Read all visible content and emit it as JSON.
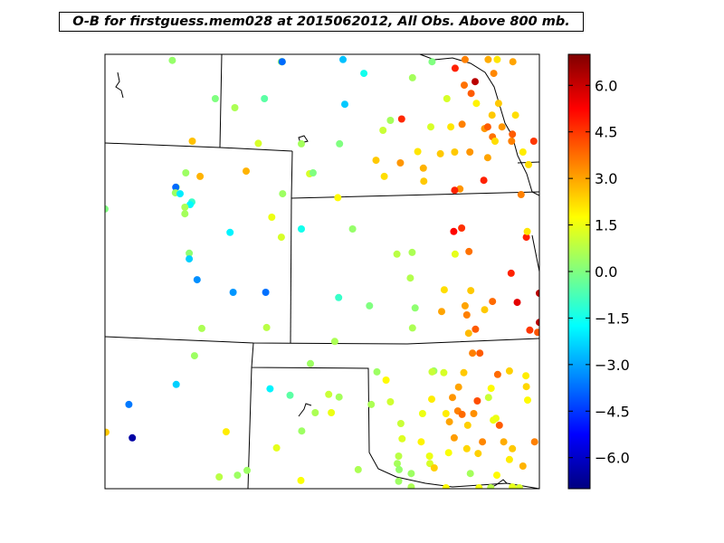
{
  "title": "O-B for firstguess.mem028 at 2015062012, All Obs. Above 800 mb.",
  "colorbar": {
    "vmin": -7,
    "vmax": 7,
    "ticks": [
      6.0,
      4.5,
      3.0,
      1.5,
      0.0,
      -1.5,
      -3.0,
      -4.5,
      -6.0
    ],
    "tick_labels": [
      "6.0",
      "4.5",
      "3.0",
      "1.5",
      "0.0",
      "−1.5",
      "−3.0",
      "−4.5",
      "−6.0"
    ],
    "colormap": "jet"
  },
  "colors": {
    "jet_stops": [
      "#00007f",
      "#0000ff",
      "#0080ff",
      "#00ffff",
      "#80ff80",
      "#ffff00",
      "#ff8000",
      "#ff0000",
      "#7f0000"
    ]
  },
  "chart_data": {
    "type": "scatter",
    "title": "O-B for firstguess.mem028 at 2015062012, All Obs. Above 800 mb.",
    "xlabel": "",
    "ylabel": "",
    "value_range": [
      -7,
      7
    ],
    "note_units": "points are [map_x_fraction, map_y_fraction, O-B value]",
    "points": [
      [
        0.155,
        0.014,
        0.3
      ],
      [
        0.406,
        0.017,
        0.2
      ],
      [
        0.408,
        0.017,
        0.2
      ],
      [
        0.408,
        0.017,
        0.2
      ],
      [
        0.408,
        0.017,
        -3.8
      ],
      [
        0.548,
        0.012,
        -2.6
      ],
      [
        0.829,
        0.012,
        3.5
      ],
      [
        0.882,
        0.012,
        2.9
      ],
      [
        0.903,
        0.012,
        2.1
      ],
      [
        0.939,
        0.017,
        3.0
      ],
      [
        0.753,
        0.017,
        0.0
      ],
      [
        0.806,
        0.032,
        4.8
      ],
      [
        0.596,
        0.044,
        -1.5
      ],
      [
        0.708,
        0.054,
        0.5
      ],
      [
        0.895,
        0.044,
        3.4
      ],
      [
        0.827,
        0.071,
        3.7
      ],
      [
        0.852,
        0.063,
        6.2
      ],
      [
        0.254,
        0.102,
        0.0
      ],
      [
        0.367,
        0.102,
        -0.5
      ],
      [
        0.787,
        0.102,
        1.2
      ],
      [
        0.843,
        0.09,
        4.0
      ],
      [
        0.299,
        0.123,
        0.6
      ],
      [
        0.552,
        0.115,
        -2.5
      ],
      [
        0.855,
        0.113,
        1.9
      ],
      [
        0.906,
        0.113,
        2.5
      ],
      [
        0.683,
        0.149,
        4.7
      ],
      [
        0.657,
        0.152,
        0.5
      ],
      [
        0.822,
        0.161,
        3.5
      ],
      [
        0.891,
        0.14,
        2.5
      ],
      [
        0.945,
        0.14,
        2.2
      ],
      [
        0.75,
        0.167,
        1.2
      ],
      [
        0.796,
        0.167,
        2.1
      ],
      [
        0.64,
        0.175,
        1.0
      ],
      [
        0.874,
        0.171,
        3.2
      ],
      [
        0.881,
        0.167,
        4.0
      ],
      [
        0.914,
        0.167,
        3.2
      ],
      [
        0.892,
        0.19,
        3.7
      ],
      [
        0.938,
        0.184,
        4.0
      ],
      [
        0.898,
        0.2,
        2.2
      ],
      [
        0.936,
        0.2,
        3.5
      ],
      [
        0.201,
        0.2,
        2.6
      ],
      [
        0.353,
        0.205,
        1.2
      ],
      [
        0.452,
        0.206,
        0.5
      ],
      [
        0.54,
        0.206,
        0.0
      ],
      [
        0.72,
        0.224,
        2.1
      ],
      [
        0.772,
        0.229,
        2.5
      ],
      [
        0.805,
        0.225,
        2.5
      ],
      [
        0.84,
        0.225,
        3.2
      ],
      [
        0.881,
        0.238,
        3.0
      ],
      [
        0.987,
        0.2,
        4.5
      ],
      [
        0.962,
        0.225,
        2.0
      ],
      [
        0.624,
        0.244,
        2.5
      ],
      [
        0.68,
        0.25,
        3.2
      ],
      [
        0.733,
        0.262,
        2.8
      ],
      [
        0.975,
        0.254,
        2.2
      ],
      [
        0.325,
        0.269,
        2.8
      ],
      [
        0.471,
        0.275,
        1.2
      ],
      [
        0.479,
        0.273,
        0.0
      ],
      [
        0.186,
        0.273,
        0.4
      ],
      [
        0.219,
        0.281,
        2.8
      ],
      [
        0.164,
        0.306,
        0.2
      ],
      [
        0.643,
        0.281,
        2.2
      ],
      [
        0.734,
        0.292,
        2.5
      ],
      [
        0.817,
        0.31,
        3.2
      ],
      [
        0.872,
        0.29,
        4.8
      ],
      [
        0.163,
        0.306,
        -3.8
      ],
      [
        0.162,
        0.319,
        0.4
      ],
      [
        0.173,
        0.321,
        -2.0
      ],
      [
        0.2,
        0.34,
        -1.0
      ],
      [
        0.196,
        0.346,
        -1.8
      ],
      [
        0.184,
        0.352,
        0.6
      ],
      [
        0.184,
        0.367,
        0.5
      ],
      [
        0.409,
        0.321,
        0.4
      ],
      [
        0.536,
        0.33,
        1.8
      ],
      [
        0.805,
        0.313,
        4.8
      ],
      [
        0.0,
        0.356,
        0.0
      ],
      [
        0.958,
        0.323,
        3.5
      ],
      [
        0.384,
        0.375,
        1.5
      ],
      [
        0.803,
        0.408,
        5.2
      ],
      [
        0.821,
        0.4,
        4.6
      ],
      [
        0.97,
        0.421,
        4.8
      ],
      [
        0.972,
        0.408,
        2.1
      ],
      [
        0.57,
        0.402,
        0.3
      ],
      [
        0.288,
        0.41,
        -1.9
      ],
      [
        0.452,
        0.402,
        -1.5
      ],
      [
        0.406,
        0.421,
        1.2
      ],
      [
        0.672,
        0.46,
        0.8
      ],
      [
        0.707,
        0.456,
        0.6
      ],
      [
        0.806,
        0.46,
        1.4
      ],
      [
        0.838,
        0.454,
        3.7
      ],
      [
        0.194,
        0.458,
        0.2
      ],
      [
        0.194,
        0.471,
        -2.4
      ],
      [
        0.212,
        0.519,
        -3.3
      ],
      [
        0.703,
        0.515,
        0.7
      ],
      [
        0.781,
        0.542,
        2.2
      ],
      [
        0.842,
        0.544,
        2.5
      ],
      [
        0.935,
        0.504,
        4.8
      ],
      [
        0.295,
        0.548,
        -3.2
      ],
      [
        0.37,
        0.548,
        -3.7
      ],
      [
        0.538,
        0.56,
        -1.0
      ],
      [
        0.609,
        0.579,
        0.0
      ],
      [
        0.714,
        0.584,
        0.2
      ],
      [
        0.829,
        0.579,
        3.0
      ],
      [
        0.833,
        0.6,
        3.5
      ],
      [
        0.892,
        0.569,
        3.8
      ],
      [
        0.874,
        0.588,
        2.5
      ],
      [
        0.775,
        0.592,
        3.0
      ],
      [
        0.853,
        0.633,
        4.0
      ],
      [
        0.708,
        0.63,
        0.6
      ],
      [
        0.223,
        0.631,
        0.6
      ],
      [
        0.372,
        0.629,
        0.8
      ],
      [
        0.837,
        0.642,
        2.7
      ],
      [
        0.978,
        0.635,
        4.5
      ],
      [
        0.996,
        0.64,
        4.1
      ],
      [
        0.529,
        0.661,
        0.6
      ],
      [
        0.949,
        0.571,
        5.6
      ],
      [
        1.0,
        0.617,
        6.2
      ],
      [
        1.0,
        0.55,
        6.2
      ],
      [
        0.206,
        0.694,
        0.4
      ],
      [
        0.473,
        0.712,
        0.4
      ],
      [
        0.846,
        0.688,
        3.5
      ],
      [
        0.863,
        0.688,
        4.0
      ],
      [
        0.757,
        0.729,
        0.4
      ],
      [
        0.78,
        0.733,
        1.2
      ],
      [
        0.826,
        0.733,
        2.5
      ],
      [
        0.814,
        0.766,
        3.0
      ],
      [
        0.904,
        0.737,
        3.8
      ],
      [
        0.931,
        0.729,
        2.4
      ],
      [
        0.969,
        0.74,
        2.0
      ],
      [
        0.164,
        0.76,
        -2.4
      ],
      [
        0.647,
        0.75,
        1.8
      ],
      [
        0.539,
        0.789,
        0.5
      ],
      [
        0.626,
        0.731,
        0.4
      ],
      [
        0.753,
        0.731,
        1.0
      ],
      [
        0.883,
        0.79,
        1.0
      ],
      [
        0.889,
        0.769,
        1.8
      ],
      [
        0.97,
        0.765,
        2.3
      ],
      [
        0.973,
        0.796,
        1.8
      ],
      [
        0.38,
        0.77,
        -1.9
      ],
      [
        0.426,
        0.785,
        -0.5
      ],
      [
        0.515,
        0.783,
        1.0
      ],
      [
        0.613,
        0.806,
        0.6
      ],
      [
        0.657,
        0.8,
        1.1
      ],
      [
        0.752,
        0.794,
        2.0
      ],
      [
        0.8,
        0.79,
        3.2
      ],
      [
        0.857,
        0.798,
        4.2
      ],
      [
        0.894,
        0.842,
        1.5
      ],
      [
        0.055,
        0.806,
        -3.6
      ],
      [
        0.484,
        0.825,
        0.6
      ],
      [
        0.521,
        0.825,
        1.5
      ],
      [
        0.731,
        0.827,
        1.5
      ],
      [
        0.785,
        0.827,
        2.0
      ],
      [
        0.812,
        0.821,
        3.5
      ],
      [
        0.822,
        0.829,
        3.8
      ],
      [
        0.849,
        0.827,
        3.3
      ],
      [
        0.793,
        0.846,
        3.0
      ],
      [
        0.835,
        0.854,
        2.4
      ],
      [
        0.681,
        0.85,
        1.0
      ],
      [
        0.9,
        0.838,
        1.5
      ],
      [
        0.908,
        0.854,
        4.0
      ],
      [
        0.453,
        0.867,
        0.4
      ],
      [
        0.002,
        0.87,
        2.5
      ],
      [
        0.279,
        0.869,
        2.0
      ],
      [
        0.063,
        0.883,
        -6.5
      ],
      [
        0.684,
        0.885,
        1.3
      ],
      [
        0.728,
        0.892,
        1.9
      ],
      [
        0.804,
        0.883,
        3.1
      ],
      [
        0.869,
        0.892,
        3.4
      ],
      [
        0.918,
        0.892,
        2.9
      ],
      [
        0.989,
        0.892,
        3.5
      ],
      [
        0.395,
        0.906,
        1.4
      ],
      [
        0.676,
        0.925,
        0.8
      ],
      [
        0.747,
        0.925,
        1.5
      ],
      [
        0.791,
        0.917,
        1.7
      ],
      [
        0.833,
        0.908,
        2.3
      ],
      [
        0.859,
        0.919,
        2.4
      ],
      [
        0.938,
        0.908,
        2.5
      ],
      [
        0.931,
        0.933,
        2.0
      ],
      [
        0.962,
        0.948,
        2.8
      ],
      [
        0.673,
        0.942,
        0.5
      ],
      [
        0.748,
        0.942,
        1.2
      ],
      [
        0.758,
        0.952,
        2.4
      ],
      [
        0.263,
        0.973,
        0.8
      ],
      [
        0.305,
        0.969,
        0.4
      ],
      [
        0.327,
        0.958,
        0.4
      ],
      [
        0.583,
        0.956,
        0.6
      ],
      [
        0.677,
        0.956,
        0.3
      ],
      [
        0.705,
        0.965,
        0.4
      ],
      [
        0.841,
        0.965,
        0.5
      ],
      [
        0.902,
        0.969,
        1.8
      ],
      [
        0.451,
        0.981,
        1.7
      ],
      [
        0.676,
        0.983,
        0.4
      ],
      [
        0.705,
        0.996,
        0.6
      ],
      [
        0.938,
        0.996,
        1.4
      ],
      [
        0.785,
        0.998,
        1.8
      ],
      [
        0.861,
        0.998,
        1.6
      ],
      [
        0.888,
        0.998,
        0.8
      ],
      [
        0.954,
        0.998,
        1.2
      ]
    ]
  }
}
